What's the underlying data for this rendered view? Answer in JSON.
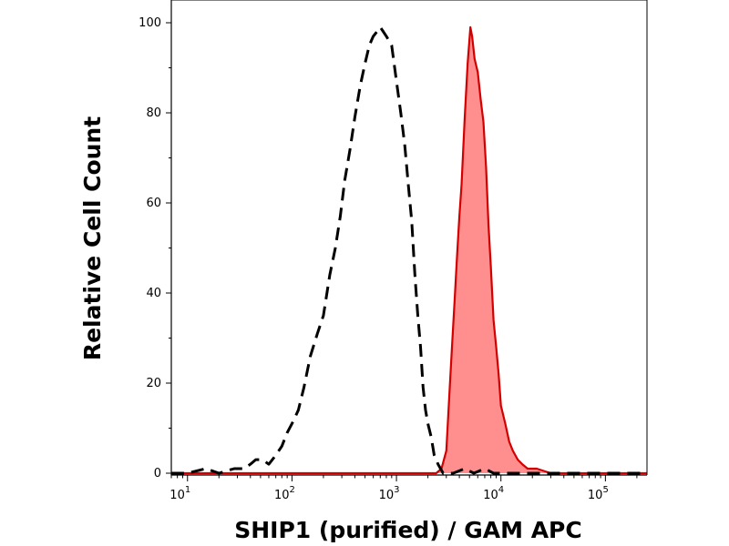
{
  "chart_data": {
    "type": "area",
    "xlabel": "SHIP1 (purified) / GAM APC",
    "ylabel": "Relative Cell Count",
    "x_scale": "log",
    "xlim": [
      7,
      250000
    ],
    "ylim": [
      0,
      100
    ],
    "x_ticks": [
      {
        "value": 10,
        "base": "10",
        "exp": "1"
      },
      {
        "value": 100,
        "base": "10",
        "exp": "2"
      },
      {
        "value": 1000,
        "base": "10",
        "exp": "3"
      },
      {
        "value": 10000,
        "base": "10",
        "exp": "4"
      },
      {
        "value": 100000,
        "base": "10",
        "exp": "5"
      }
    ],
    "y_ticks": [
      {
        "value": 0,
        "label": "0"
      },
      {
        "value": 20,
        "label": "20"
      },
      {
        "value": 40,
        "label": "40"
      },
      {
        "value": 60,
        "label": "60"
      },
      {
        "value": 80,
        "label": "80"
      },
      {
        "value": 100,
        "label": "100"
      }
    ],
    "grid": false,
    "series": [
      {
        "style": "dashed",
        "color": "#000000",
        "fill": "none",
        "points": [
          [
            7,
            0
          ],
          [
            10,
            0
          ],
          [
            15,
            1
          ],
          [
            20,
            0
          ],
          [
            28,
            1
          ],
          [
            35,
            1
          ],
          [
            40,
            2
          ],
          [
            45,
            3
          ],
          [
            52,
            3
          ],
          [
            60,
            2
          ],
          [
            70,
            4
          ],
          [
            80,
            6
          ],
          [
            90,
            9
          ],
          [
            100,
            11
          ],
          [
            115,
            14
          ],
          [
            130,
            19
          ],
          [
            150,
            26
          ],
          [
            175,
            31
          ],
          [
            200,
            35
          ],
          [
            230,
            44
          ],
          [
            260,
            50
          ],
          [
            290,
            57
          ],
          [
            320,
            65
          ],
          [
            360,
            72
          ],
          [
            400,
            79
          ],
          [
            450,
            86
          ],
          [
            500,
            91
          ],
          [
            550,
            95
          ],
          [
            600,
            97
          ],
          [
            650,
            98
          ],
          [
            700,
            99
          ],
          [
            750,
            98
          ],
          [
            800,
            97
          ],
          [
            900,
            95
          ],
          [
            1000,
            87
          ],
          [
            1100,
            80
          ],
          [
            1200,
            73
          ],
          [
            1300,
            64
          ],
          [
            1400,
            56
          ],
          [
            1500,
            44
          ],
          [
            1600,
            35
          ],
          [
            1700,
            28
          ],
          [
            1800,
            19
          ],
          [
            1900,
            14
          ],
          [
            2000,
            11
          ],
          [
            2150,
            8
          ],
          [
            2300,
            4
          ],
          [
            2500,
            2
          ],
          [
            2800,
            0
          ],
          [
            3500,
            0
          ],
          [
            4500,
            1
          ],
          [
            5500,
            0
          ],
          [
            7000,
            1
          ],
          [
            8500,
            0
          ],
          [
            10000,
            0
          ],
          [
            20000,
            0
          ],
          [
            250000,
            0
          ]
        ]
      },
      {
        "style": "solid",
        "color": "#d40000",
        "fill": "#ff8f8f",
        "points": [
          [
            7,
            0
          ],
          [
            2000,
            0
          ],
          [
            2400,
            0
          ],
          [
            2700,
            1
          ],
          [
            3000,
            5
          ],
          [
            3200,
            17
          ],
          [
            3400,
            28
          ],
          [
            3600,
            38
          ],
          [
            3800,
            48
          ],
          [
            4000,
            57
          ],
          [
            4200,
            64
          ],
          [
            4500,
            79
          ],
          [
            4800,
            91
          ],
          [
            5100,
            99
          ],
          [
            5300,
            97
          ],
          [
            5600,
            92
          ],
          [
            6000,
            89
          ],
          [
            6400,
            83
          ],
          [
            6800,
            78
          ],
          [
            7200,
            68
          ],
          [
            7600,
            55
          ],
          [
            8000,
            46
          ],
          [
            8500,
            34
          ],
          [
            9000,
            28
          ],
          [
            9500,
            22
          ],
          [
            10000,
            15
          ],
          [
            11000,
            11
          ],
          [
            12000,
            7
          ],
          [
            13000,
            5
          ],
          [
            14500,
            3
          ],
          [
            16000,
            2
          ],
          [
            18000,
            1
          ],
          [
            22000,
            1
          ],
          [
            30000,
            0
          ],
          [
            250000,
            0
          ]
        ]
      }
    ]
  }
}
